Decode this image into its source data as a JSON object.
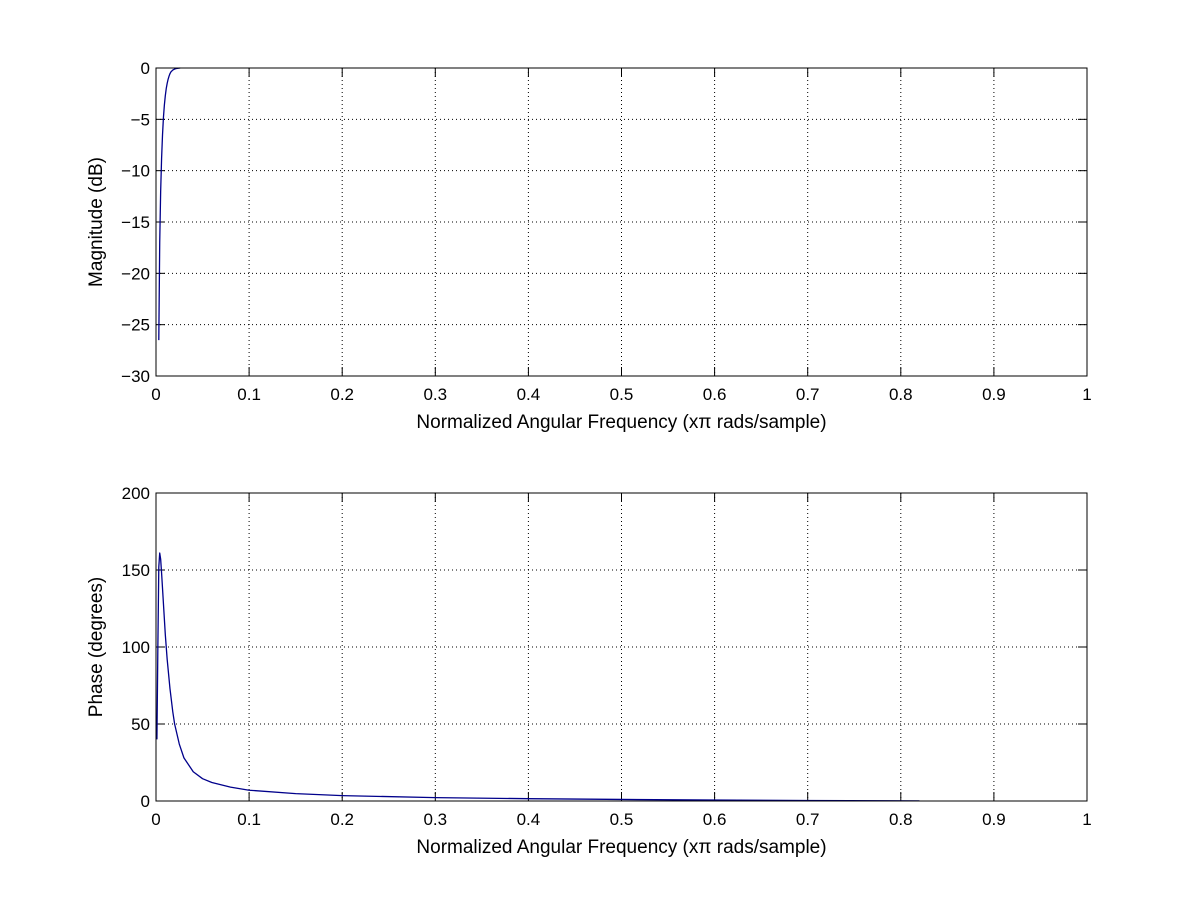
{
  "figure": {
    "background": "#ffffff",
    "axes_color": "#000000",
    "line_color": "#00008b",
    "grid": true,
    "grid_style": "dotted"
  },
  "chart_data": [
    {
      "type": "line",
      "title": "",
      "xlabel": "Normalized Angular Frequency  (xπ rads/sample)",
      "ylabel": "Magnitude (dB)",
      "xlim": [
        0,
        1
      ],
      "ylim": [
        -30,
        0
      ],
      "xticks": [
        "0",
        "0.1",
        "0.2",
        "0.3",
        "0.4",
        "0.5",
        "0.6",
        "0.7",
        "0.8",
        "0.9",
        "1"
      ],
      "yticks": [
        "0",
        "−5",
        "−10",
        "−15",
        "−20",
        "−25",
        "−30"
      ],
      "xtick_values": [
        0,
        0.1,
        0.2,
        0.3,
        0.4,
        0.5,
        0.6,
        0.7,
        0.8,
        0.9,
        1
      ],
      "ytick_values": [
        0,
        -5,
        -10,
        -15,
        -20,
        -25,
        -30
      ],
      "grid": true,
      "series": [
        {
          "x": [
            0.003,
            0.004,
            0.005,
            0.006,
            0.007,
            0.008,
            0.009,
            0.01,
            0.011,
            0.012,
            0.013,
            0.014,
            0.015,
            0.016,
            0.018,
            0.02,
            0.022,
            0.024,
            0.026
          ],
          "y": [
            -26.5,
            -17.0,
            -12.0,
            -8.8,
            -6.5,
            -4.8,
            -3.6,
            -2.7,
            -2.0,
            -1.5,
            -1.1,
            -0.8,
            -0.55,
            -0.38,
            -0.2,
            -0.1,
            -0.05,
            -0.02,
            0
          ]
        }
      ]
    },
    {
      "type": "line",
      "title": "",
      "xlabel": "Normalized Angular Frequency  (xπ rads/sample)",
      "ylabel": "Phase (degrees)",
      "xlim": [
        0,
        1
      ],
      "ylim": [
        0,
        200
      ],
      "xticks": [
        "0",
        "0.1",
        "0.2",
        "0.3",
        "0.4",
        "0.5",
        "0.6",
        "0.7",
        "0.8",
        "0.9",
        "1"
      ],
      "yticks": [
        "0",
        "50",
        "100",
        "150",
        "200"
      ],
      "xtick_values": [
        0,
        0.1,
        0.2,
        0.3,
        0.4,
        0.5,
        0.6,
        0.7,
        0.8,
        0.9,
        1
      ],
      "ytick_values": [
        0,
        50,
        100,
        150,
        200
      ],
      "grid": true,
      "series": [
        {
          "x": [
            0.001,
            0.002,
            0.003,
            0.004,
            0.005,
            0.006,
            0.008,
            0.01,
            0.012,
            0.015,
            0.018,
            0.02,
            0.025,
            0.03,
            0.04,
            0.05,
            0.06,
            0.08,
            0.1,
            0.15,
            0.2,
            0.3,
            0.4,
            0.5,
            0.6,
            0.7,
            0.82
          ],
          "y": [
            40,
            100,
            152,
            161,
            157,
            148,
            128,
            108,
            92,
            73,
            58,
            50,
            37,
            28,
            19,
            14.5,
            12,
            9,
            7,
            4.8,
            3.5,
            2.2,
            1.5,
            1.0,
            0.6,
            0.3,
            0.1
          ]
        }
      ]
    }
  ]
}
